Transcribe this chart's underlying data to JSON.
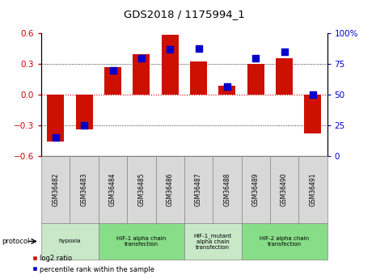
{
  "title": "GDS2018 / 1175994_1",
  "samples": [
    "GSM36482",
    "GSM36483",
    "GSM36484",
    "GSM36485",
    "GSM36486",
    "GSM36487",
    "GSM36488",
    "GSM36489",
    "GSM36490",
    "GSM36491"
  ],
  "log2_ratio": [
    -0.46,
    -0.34,
    0.27,
    0.4,
    0.59,
    0.33,
    0.09,
    0.3,
    0.36,
    -0.38
  ],
  "percentile_rank": [
    15,
    25,
    70,
    80,
    87,
    88,
    57,
    80,
    85,
    50
  ],
  "ylim_left": [
    -0.6,
    0.6
  ],
  "ylim_right": [
    0,
    100
  ],
  "yticks_left": [
    -0.6,
    -0.3,
    0.0,
    0.3,
    0.6
  ],
  "yticks_right": [
    0,
    25,
    50,
    75,
    100
  ],
  "ytick_labels_right": [
    "0",
    "25",
    "50",
    "75",
    "100%"
  ],
  "bar_color": "#cc1100",
  "dot_color": "#0000cc",
  "bar_width": 0.6,
  "dot_size": 30,
  "background_color": "#ffffff",
  "groups": [
    {
      "label": "hypoxia",
      "start": 0,
      "end": 1,
      "color": "#c8e8c8"
    },
    {
      "label": "HIF-1 alpha chain\ntransfection",
      "start": 2,
      "end": 4,
      "color": "#88dd88"
    },
    {
      "label": "HIF-1_mutant\nalpha chain\ntransfection",
      "start": 5,
      "end": 6,
      "color": "#c8e8c8"
    },
    {
      "label": "HIF-2 alpha chain\ntransfection",
      "start": 7,
      "end": 9,
      "color": "#88dd88"
    }
  ],
  "legend_red_label": "log2 ratio",
  "legend_blue_label": "percentile rank within the sample",
  "protocol_label": "protocol"
}
